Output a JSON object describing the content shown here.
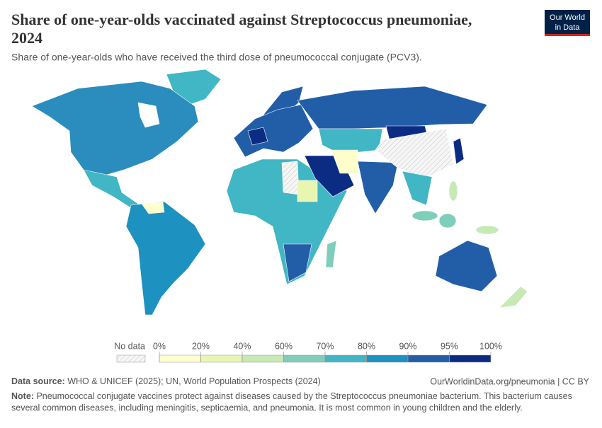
{
  "header": {
    "title_line1": "Share of one-year-olds vaccinated against Streptococcus pneumoniae,",
    "title_line2": "2024",
    "subtitle": "Share of one-year-olds who have received the third dose of pneumococcal conjugate (PCV3).",
    "logo": [
      "Our World",
      "in Data"
    ]
  },
  "legend": {
    "no_data": "No data",
    "ticks": [
      {
        "value": 0,
        "label": "0%"
      },
      {
        "value": 20,
        "label": "20%"
      },
      {
        "value": 40,
        "label": "40%"
      },
      {
        "value": 60,
        "label": "60%"
      },
      {
        "value": 70,
        "label": "70%"
      },
      {
        "value": 80,
        "label": "80%"
      },
      {
        "value": 90,
        "label": "90%"
      },
      {
        "value": 95,
        "label": "95%"
      },
      {
        "value": 100,
        "label": "100%"
      }
    ],
    "colors": [
      "#ffffcc",
      "#e8f6b1",
      "#c7e9b4",
      "#7fcdbb",
      "#41b6c4",
      "#1d91c0",
      "#225ea8",
      "#0c2c84"
    ]
  },
  "footer": {
    "source_label": "Data source:",
    "source": "WHO & UNICEF (2025); UN, World Population Prospects (2024)",
    "url": "OurWorldinData.org/pneumonia | CC BY",
    "note_label": "Note:",
    "note_line1": "Pneumococcal conjugate vaccines protect against diseases caused by the Streptococcus pneumoniae bacterium. This bacterium causes",
    "note_line2": "several common diseases, including meningitis, septicaemia, and pneumonia. It is most common in young children and the elderly."
  }
}
